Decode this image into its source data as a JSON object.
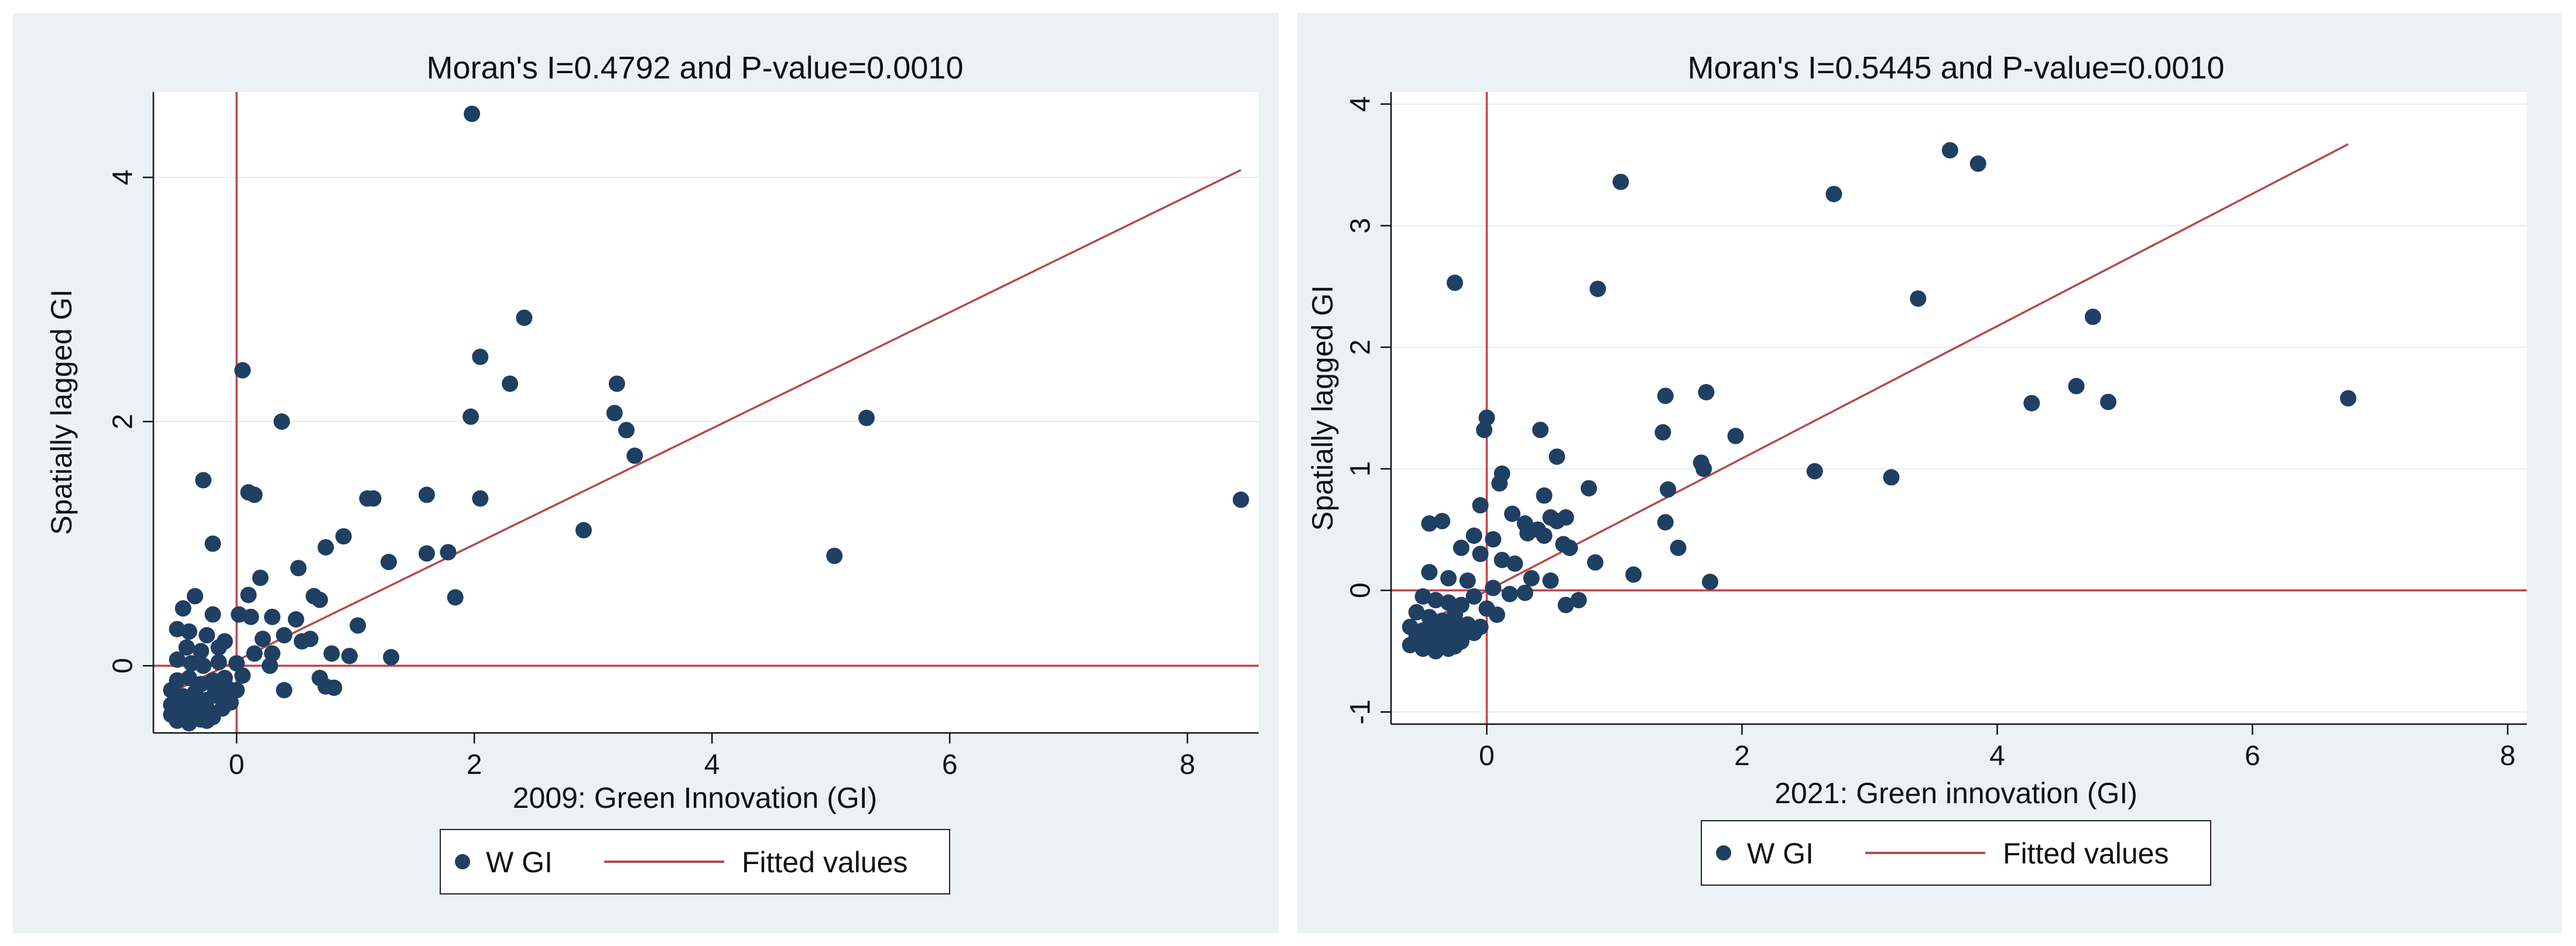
{
  "chart_data": [
    {
      "type": "scatter",
      "title": "Moran's I=0.4792 and P-value=0.0010",
      "xlabel": "2009: Green Innovation (GI)",
      "ylabel": "Spatially lagged GI",
      "xlim": [
        -0.7,
        8.6
      ],
      "ylim": [
        -0.55,
        4.7
      ],
      "xticks": [
        0,
        2,
        4,
        6,
        8
      ],
      "yticks": [
        0,
        2,
        4
      ],
      "grid": true,
      "legend": {
        "placement": "bottom",
        "entries": [
          "W GI",
          "Fitted values"
        ]
      },
      "reference_lines": {
        "x": 0,
        "y": 0
      },
      "colors": {
        "points": "#1f3f63",
        "fit": "#b54a4a",
        "ref": "#c0464b",
        "plot_bg": "#ffffff",
        "panel_bg": "#eaf2f3"
      },
      "series": [
        {
          "name": "W GI",
          "kind": "scatter",
          "points": [
            [
              1.98,
              4.52
            ],
            [
              0.05,
              2.42
            ],
            [
              0.38,
              2.0
            ],
            [
              2.42,
              2.85
            ],
            [
              2.05,
              2.53
            ],
            [
              1.97,
              2.04
            ],
            [
              2.3,
              2.31
            ],
            [
              3.2,
              2.31
            ],
            [
              3.18,
              2.07
            ],
            [
              3.28,
              1.93
            ],
            [
              3.35,
              1.72
            ],
            [
              5.3,
              2.03
            ],
            [
              8.45,
              1.36
            ],
            [
              -0.28,
              1.52
            ],
            [
              0.1,
              1.42
            ],
            [
              0.15,
              1.4
            ],
            [
              1.1,
              1.37
            ],
            [
              1.15,
              1.37
            ],
            [
              1.6,
              1.4
            ],
            [
              2.05,
              1.37
            ],
            [
              2.92,
              1.11
            ],
            [
              5.03,
              0.9
            ],
            [
              -0.2,
              1.0
            ],
            [
              0.9,
              1.06
            ],
            [
              0.75,
              0.97
            ],
            [
              1.28,
              0.85
            ],
            [
              1.6,
              0.92
            ],
            [
              1.78,
              0.93
            ],
            [
              1.84,
              0.56
            ],
            [
              0.52,
              0.8
            ],
            [
              0.2,
              0.72
            ],
            [
              0.65,
              0.57
            ],
            [
              0.7,
              0.54
            ],
            [
              -0.35,
              0.57
            ],
            [
              0.1,
              0.58
            ],
            [
              -0.45,
              0.47
            ],
            [
              -0.2,
              0.42
            ],
            [
              0.02,
              0.42
            ],
            [
              0.12,
              0.4
            ],
            [
              0.3,
              0.4
            ],
            [
              0.5,
              0.38
            ],
            [
              1.02,
              0.33
            ],
            [
              -0.5,
              0.3
            ],
            [
              -0.4,
              0.28
            ],
            [
              -0.25,
              0.25
            ],
            [
              -0.1,
              0.2
            ],
            [
              0.22,
              0.22
            ],
            [
              0.4,
              0.25
            ],
            [
              0.55,
              0.2
            ],
            [
              0.62,
              0.22
            ],
            [
              -0.42,
              0.15
            ],
            [
              -0.3,
              0.12
            ],
            [
              -0.15,
              0.15
            ],
            [
              0.15,
              0.1
            ],
            [
              0.3,
              0.1
            ],
            [
              0.8,
              0.1
            ],
            [
              0.95,
              0.08
            ],
            [
              1.3,
              0.07
            ],
            [
              -0.5,
              0.05
            ],
            [
              -0.38,
              0.02
            ],
            [
              -0.28,
              0.0
            ],
            [
              -0.15,
              0.03
            ],
            [
              0.0,
              0.02
            ],
            [
              0.28,
              0.0
            ],
            [
              0.05,
              -0.08
            ],
            [
              0.7,
              -0.1
            ],
            [
              0.75,
              -0.17
            ],
            [
              0.82,
              -0.18
            ],
            [
              0.4,
              -0.2
            ],
            [
              -0.5,
              -0.12
            ],
            [
              -0.4,
              -0.1
            ],
            [
              -0.3,
              -0.15
            ],
            [
              -0.2,
              -0.12
            ],
            [
              -0.1,
              -0.1
            ],
            [
              0.0,
              -0.2
            ],
            [
              -0.55,
              -0.2
            ],
            [
              -0.45,
              -0.25
            ],
            [
              -0.35,
              -0.22
            ],
            [
              -0.25,
              -0.28
            ],
            [
              -0.15,
              -0.25
            ],
            [
              -0.05,
              -0.3
            ],
            [
              -0.52,
              -0.3
            ],
            [
              -0.42,
              -0.35
            ],
            [
              -0.32,
              -0.32
            ],
            [
              -0.22,
              -0.38
            ],
            [
              -0.12,
              -0.35
            ],
            [
              -0.55,
              -0.4
            ],
            [
              -0.45,
              -0.42
            ],
            [
              -0.35,
              -0.4
            ],
            [
              -0.25,
              -0.45
            ],
            [
              -0.5,
              -0.45
            ],
            [
              -0.4,
              -0.47
            ],
            [
              -0.3,
              -0.44
            ],
            [
              -0.2,
              -0.42
            ],
            [
              -0.55,
              -0.32
            ],
            [
              -0.48,
              -0.38
            ],
            [
              -0.38,
              -0.3
            ],
            [
              -0.28,
              -0.36
            ],
            [
              -0.18,
              -0.2
            ],
            [
              -0.08,
              -0.18
            ]
          ]
        },
        {
          "name": "Fitted values",
          "kind": "line",
          "points": [
            [
              -0.55,
              -0.22
            ],
            [
              8.45,
              4.06
            ]
          ]
        }
      ]
    },
    {
      "type": "scatter",
      "title": "Moran's I=0.5445 and P-value=0.0010",
      "xlabel": "2021: Green innovation (GI)",
      "ylabel": "Spatially lagged GI",
      "xlim": [
        -0.75,
        8.15
      ],
      "ylim": [
        -1.1,
        4.1
      ],
      "xticks": [
        0,
        2,
        4,
        6,
        8
      ],
      "yticks": [
        -1,
        0,
        1,
        2,
        3,
        4
      ],
      "grid": true,
      "legend": {
        "placement": "bottom",
        "entries": [
          "W GI",
          "Fitted values"
        ]
      },
      "reference_lines": {
        "x": 0,
        "y": 0
      },
      "colors": {
        "points": "#1f3f63",
        "fit": "#b54a4a",
        "ref": "#c0464b",
        "plot_bg": "#ffffff",
        "panel_bg": "#eaf2f3"
      },
      "series": [
        {
          "name": "W GI",
          "kind": "scatter",
          "points": [
            [
              3.63,
              3.62
            ],
            [
              3.85,
              3.51
            ],
            [
              1.05,
              3.36
            ],
            [
              2.72,
              3.26
            ],
            [
              -0.25,
              2.53
            ],
            [
              0.87,
              2.48
            ],
            [
              3.38,
              2.4
            ],
            [
              4.75,
              2.25
            ],
            [
              1.4,
              1.6
            ],
            [
              1.72,
              1.63
            ],
            [
              4.62,
              1.68
            ],
            [
              4.27,
              1.54
            ],
            [
              4.87,
              1.55
            ],
            [
              6.75,
              1.58
            ],
            [
              0.0,
              1.42
            ],
            [
              -0.02,
              1.32
            ],
            [
              1.38,
              1.3
            ],
            [
              1.95,
              1.27
            ],
            [
              0.42,
              1.32
            ],
            [
              1.68,
              1.05
            ],
            [
              1.7,
              1.0
            ],
            [
              0.55,
              1.1
            ],
            [
              2.57,
              0.98
            ],
            [
              3.17,
              0.93
            ],
            [
              0.12,
              0.96
            ],
            [
              0.1,
              0.88
            ],
            [
              1.42,
              0.83
            ],
            [
              0.8,
              0.84
            ],
            [
              0.45,
              0.78
            ],
            [
              -0.05,
              0.7
            ],
            [
              0.2,
              0.63
            ],
            [
              0.5,
              0.6
            ],
            [
              0.55,
              0.57
            ],
            [
              0.62,
              0.6
            ],
            [
              0.3,
              0.55
            ],
            [
              -0.45,
              0.55
            ],
            [
              -0.35,
              0.57
            ],
            [
              0.32,
              0.47
            ],
            [
              0.4,
              0.5
            ],
            [
              0.45,
              0.45
            ],
            [
              0.6,
              0.38
            ],
            [
              0.65,
              0.35
            ],
            [
              0.85,
              0.23
            ],
            [
              1.4,
              0.56
            ],
            [
              1.5,
              0.35
            ],
            [
              1.15,
              0.13
            ],
            [
              1.75,
              0.07
            ],
            [
              -0.1,
              0.45
            ],
            [
              0.05,
              0.42
            ],
            [
              -0.2,
              0.35
            ],
            [
              -0.05,
              0.3
            ],
            [
              0.12,
              0.25
            ],
            [
              0.22,
              0.22
            ],
            [
              0.35,
              0.1
            ],
            [
              0.5,
              0.08
            ],
            [
              0.62,
              -0.12
            ],
            [
              0.72,
              -0.08
            ],
            [
              -0.45,
              0.15
            ],
            [
              -0.3,
              0.1
            ],
            [
              -0.15,
              0.08
            ],
            [
              0.05,
              0.02
            ],
            [
              0.18,
              -0.03
            ],
            [
              0.3,
              -0.02
            ],
            [
              -0.5,
              -0.05
            ],
            [
              -0.4,
              -0.08
            ],
            [
              -0.3,
              -0.1
            ],
            [
              -0.2,
              -0.12
            ],
            [
              -0.1,
              -0.05
            ],
            [
              0.0,
              -0.15
            ],
            [
              0.08,
              -0.2
            ],
            [
              -0.55,
              -0.18
            ],
            [
              -0.45,
              -0.22
            ],
            [
              -0.35,
              -0.25
            ],
            [
              -0.25,
              -0.2
            ],
            [
              -0.15,
              -0.28
            ],
            [
              -0.05,
              -0.3
            ],
            [
              -0.6,
              -0.3
            ],
            [
              -0.5,
              -0.33
            ],
            [
              -0.4,
              -0.35
            ],
            [
              -0.3,
              -0.32
            ],
            [
              -0.2,
              -0.38
            ],
            [
              -0.1,
              -0.35
            ],
            [
              -0.55,
              -0.4
            ],
            [
              -0.45,
              -0.42
            ],
            [
              -0.35,
              -0.44
            ],
            [
              -0.25,
              -0.46
            ],
            [
              -0.6,
              -0.45
            ],
            [
              -0.5,
              -0.48
            ],
            [
              -0.4,
              -0.5
            ],
            [
              -0.3,
              -0.48
            ],
            [
              -0.2,
              -0.42
            ],
            [
              -0.55,
              -0.38
            ],
            [
              -0.42,
              -0.28
            ],
            [
              -0.32,
              -0.4
            ],
            [
              -0.22,
              -0.3
            ]
          ]
        },
        {
          "name": "Fitted values",
          "kind": "line",
          "points": [
            [
              -0.6,
              -0.33
            ],
            [
              6.75,
              3.67
            ]
          ]
        }
      ]
    }
  ]
}
